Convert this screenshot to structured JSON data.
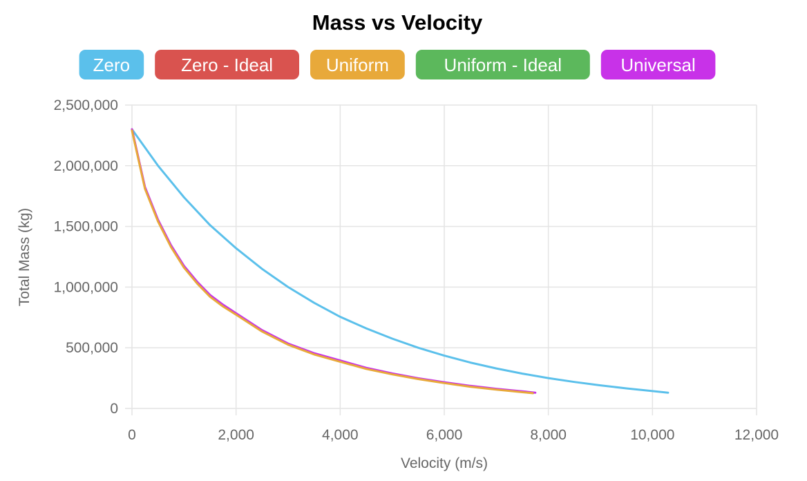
{
  "chart_data": {
    "type": "line",
    "title": "Mass vs Velocity",
    "xlabel": "Velocity (m/s)",
    "ylabel": "Total Mass (kg)",
    "xlim": [
      0,
      12000
    ],
    "ylim": [
      0,
      2500000
    ],
    "x_ticks": [
      0,
      2000,
      4000,
      6000,
      8000,
      10000,
      12000
    ],
    "x_tick_labels": [
      "0",
      "2,000",
      "4,000",
      "6,000",
      "8,000",
      "10,000",
      "12,000"
    ],
    "y_ticks": [
      0,
      500000,
      1000000,
      1500000,
      2000000,
      2500000
    ],
    "y_tick_labels": [
      "0",
      "500,000",
      "1,000,000",
      "1,500,000",
      "2,000,000",
      "2,500,000"
    ],
    "grid": true,
    "legend_position": "top",
    "series": [
      {
        "name": "Zero",
        "color": "#5bc0eb",
        "x": [
          0,
          500,
          1000,
          1500,
          2000,
          2500,
          3000,
          3500,
          4000,
          4500,
          5000,
          5500,
          6000,
          6500,
          7000,
          7500,
          8000,
          8500,
          9000,
          9500,
          10000,
          10300
        ],
        "y": [
          2300000,
          2000000,
          1740000,
          1510000,
          1320000,
          1150000,
          1000000,
          870000,
          755000,
          660000,
          575000,
          500000,
          435000,
          378000,
          330000,
          287000,
          250000,
          218000,
          190000,
          165000,
          143000,
          130000
        ]
      },
      {
        "name": "Zero - Ideal",
        "color": "#d9534f",
        "x": [
          0,
          250,
          500,
          750,
          1000,
          1250,
          1500,
          1750,
          2000,
          2500,
          3000,
          3500,
          4000,
          4500,
          5000,
          5500,
          6000,
          6500,
          7000,
          7500,
          7710
        ],
        "y": [
          2300000,
          1820000,
          1550000,
          1340000,
          1170000,
          1040000,
          930000,
          850000,
          780000,
          640000,
          530000,
          450000,
          390000,
          330000,
          285000,
          245000,
          212000,
          182000,
          158000,
          137000,
          128000
        ]
      },
      {
        "name": "Uniform",
        "color": "#e8a93a",
        "x": [
          0,
          250,
          500,
          750,
          1000,
          1250,
          1500,
          1750,
          2000,
          2500,
          3000,
          3500,
          4000,
          4500,
          5000,
          5500,
          6000,
          6500,
          7000,
          7500,
          7700
        ],
        "y": [
          2290000,
          1810000,
          1540000,
          1330000,
          1160000,
          1030000,
          920000,
          840000,
          772000,
          634000,
          525000,
          445000,
          385000,
          326000,
          281000,
          242000,
          209000,
          179000,
          155000,
          134000,
          126000
        ]
      },
      {
        "name": "Uniform - Ideal",
        "color": "#5cb85c",
        "x": [
          0,
          250,
          500,
          750,
          1000,
          1250,
          1500,
          1750,
          2000,
          2500,
          3000,
          3500,
          4000,
          4500,
          5000,
          5500,
          6000,
          6500,
          7000,
          7500,
          7710
        ],
        "y": [
          2295000,
          1815000,
          1545000,
          1335000,
          1165000,
          1035000,
          925000,
          845000,
          776000,
          637000,
          528000,
          448000,
          388000,
          328000,
          283000,
          244000,
          211000,
          181000,
          157000,
          136000,
          127000
        ]
      },
      {
        "name": "Universal",
        "color": "#c832e8",
        "x": [
          0,
          250,
          500,
          750,
          1000,
          1250,
          1500,
          1750,
          2000,
          2500,
          3000,
          3500,
          4000,
          4500,
          5000,
          5500,
          6000,
          6500,
          7000,
          7500,
          7750
        ],
        "y": [
          2300000,
          1825000,
          1555000,
          1345000,
          1175000,
          1045000,
          935000,
          855000,
          785000,
          645000,
          535000,
          455000,
          395000,
          335000,
          289000,
          249000,
          216000,
          186000,
          162000,
          141000,
          130000
        ]
      }
    ]
  }
}
